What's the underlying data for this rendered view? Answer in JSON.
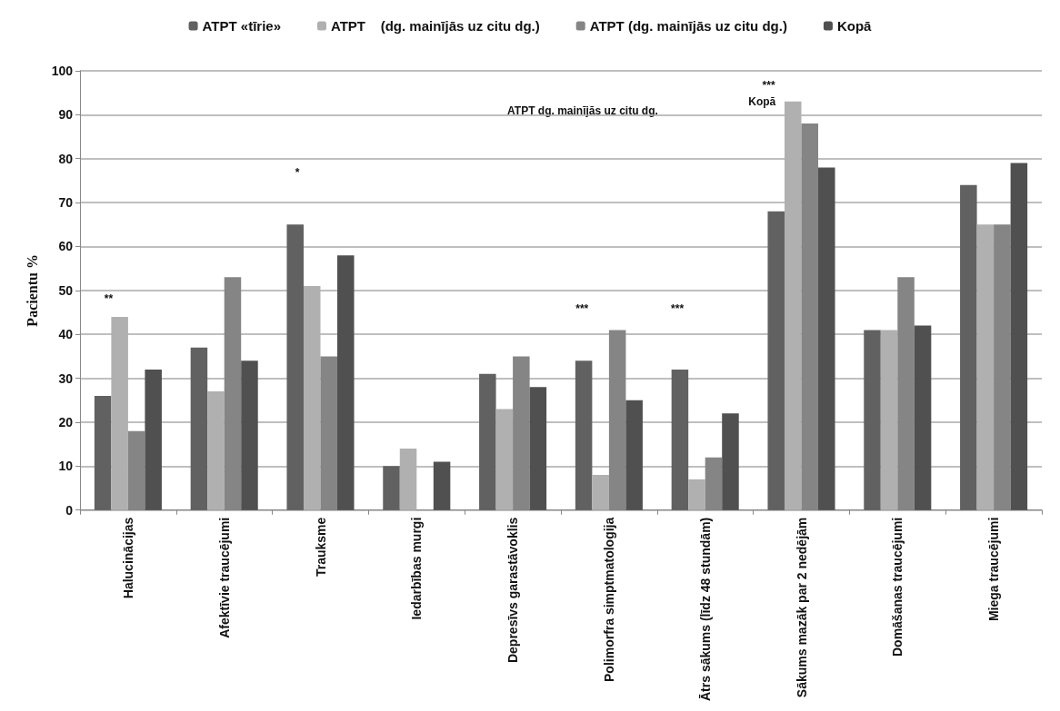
{
  "chart_data": {
    "type": "bar",
    "ylabel": "Pacientu %",
    "categories": [
      "Halucinācijas",
      "Afektīvie traucējumi",
      "Trauksme",
      "Iedarbības murgi",
      "Depresīvs garastāvoklis",
      "Polimorfra simptmatologija",
      "Ātrs sākums (līdz 48 stundām)",
      "Sākums mazāk par 2 nedējām",
      "Domāšanas traucējumi",
      "Miega traucējumi"
    ],
    "series": [
      {
        "name": "ATPT «tīrie»",
        "color": "#616161",
        "values": [
          26,
          37,
          65,
          10,
          31,
          34,
          32,
          68,
          41,
          74
        ]
      },
      {
        "name": "ATPT    (dg. mainījās uz citu dg.)",
        "color": "#b0b0b0",
        "values": [
          44,
          27,
          51,
          14,
          23,
          8,
          7,
          93,
          41,
          65
        ]
      },
      {
        "name": "ATPT (dg. mainījās uz citu dg.)",
        "color": "#858585",
        "values": [
          18,
          53,
          35,
          null,
          35,
          41,
          12,
          88,
          53,
          65
        ]
      },
      {
        "name": "Kopā",
        "color": "#505050",
        "values": [
          32,
          34,
          58,
          11,
          28,
          25,
          22,
          78,
          42,
          79
        ]
      }
    ],
    "ylim": [
      0,
      100
    ],
    "yticks": [
      0,
      10,
      20,
      30,
      40,
      50,
      60,
      70,
      80,
      90,
      100
    ],
    "grid": "y",
    "legend": "top",
    "annotations": [
      "**",
      "*",
      "***",
      "***",
      "***",
      "Kopā",
      "ATPT dg. mainījās uz citu dg."
    ]
  }
}
